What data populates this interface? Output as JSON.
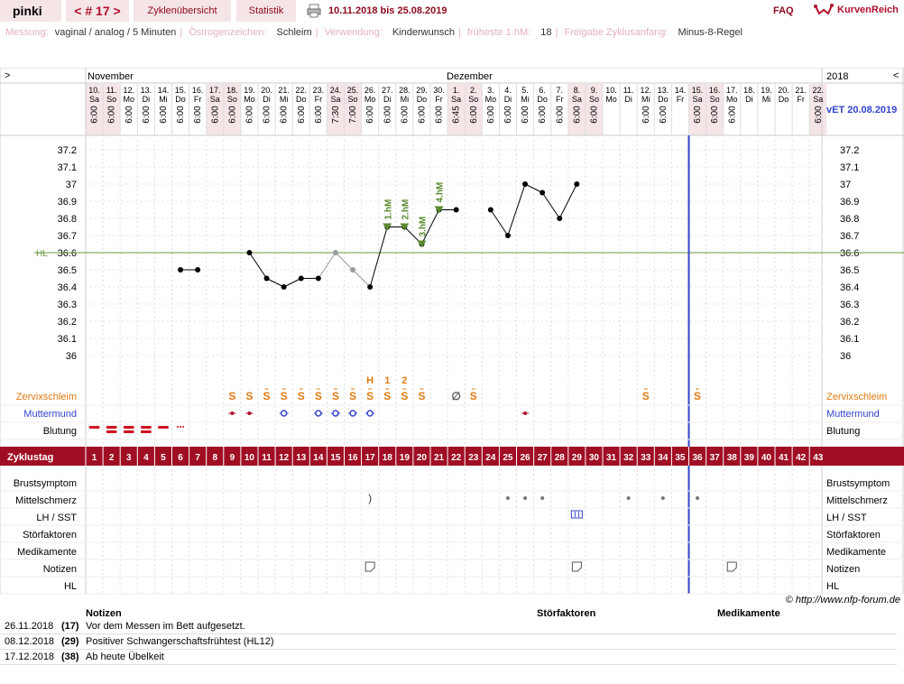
{
  "header": {
    "user": "pinki",
    "cycle_nav": "< # 17 >",
    "tab_overview": "Zyklenübersicht",
    "tab_stats": "Statistik",
    "date_range": "10.11.2018 bis 25.08.2019",
    "faq": "FAQ",
    "brand": "KurvenReich"
  },
  "info": {
    "messung_label": "Messung:",
    "messung": "vaginal / analog / 5 Minuten",
    "oestrogen_label": "Östrogenzeichen:",
    "oestrogen": "Schleim",
    "verwendung_label": "Verwendung:",
    "verwendung": "Kinderwunsch",
    "hm_label": "früheste 1.hM:",
    "hm": "18",
    "freigabe_label": "Freigabe Zyklusanfang:",
    "freigabe": "Minus-8-Regel"
  },
  "chart": {
    "nav_left": ">",
    "nav_right": "<",
    "year": "2018",
    "month1": "November",
    "month2": "Dezember",
    "vet": "vET 20.08.2019",
    "hl_label": "HL",
    "days": [
      "10.",
      "11.",
      "12.",
      "13.",
      "14.",
      "15.",
      "16.",
      "17.",
      "18.",
      "19.",
      "20.",
      "21.",
      "22.",
      "23.",
      "24.",
      "25.",
      "26.",
      "27.",
      "28.",
      "29.",
      "30.",
      "1.",
      "2.",
      "3.",
      "4.",
      "5.",
      "6.",
      "7.",
      "8.",
      "9.",
      "10.",
      "11.",
      "12.",
      "13.",
      "14.",
      "15.",
      "16.",
      "17.",
      "18.",
      "19.",
      "20.",
      "21.",
      "22."
    ],
    "weekdays": [
      "Sa",
      "So",
      "Mo",
      "Di",
      "Mi",
      "Do",
      "Fr",
      "Sa",
      "So",
      "Mo",
      "Di",
      "Mi",
      "Do",
      "Fr",
      "Sa",
      "So",
      "Mo",
      "Di",
      "Mi",
      "Do",
      "Fr",
      "Sa",
      "So",
      "Mo",
      "Di",
      "Mi",
      "Do",
      "Fr",
      "Sa",
      "So",
      "Mo",
      "Di",
      "Mi",
      "Do",
      "Fr",
      "Sa",
      "So",
      "Mo",
      "Di",
      "Mi",
      "Do",
      "Fr",
      "Sa"
    ],
    "times": [
      "6:00",
      "6:00",
      "6:00",
      "6:00",
      "6:00",
      "6:00",
      "6:00",
      "6:00",
      "6:00",
      "6:00",
      "6:00",
      "6:00",
      "6:00",
      "6:00",
      "7:30",
      "7:00",
      "6:00",
      "6:00",
      "6:00",
      "6:00",
      "6:00",
      "6:45",
      "6:00",
      "6:00",
      "6:00",
      "6:00",
      "6:00",
      "6:00",
      "6:00",
      "6:00",
      "",
      "",
      "6:00",
      "6:00",
      "",
      "6:00",
      "6:00",
      "6:00",
      "",
      "",
      "",
      "",
      "6:00"
    ],
    "y_ticks": [
      "37.2",
      "37.1",
      "37",
      "36.9",
      "36.8",
      "36.7",
      "36.6",
      "36.5",
      "36.4",
      "36.3",
      "36.2",
      "36.1",
      "36"
    ],
    "hm_labels": [
      "1.hM",
      "2.hM",
      "3.hM",
      "4.hM"
    ],
    "mark_h": "H",
    "mark_1": "1",
    "mark_2": "2",
    "zyklustag_label": "Zyklustag",
    "rows_left": [
      "Zervixschleim",
      "Muttermund",
      "Blutung"
    ],
    "rows_bottom": [
      "Brustsymptom",
      "Mittelschmerz",
      "LH / SST",
      "Störfaktoren",
      "Medikamente",
      "Notizen",
      "HL"
    ]
  },
  "chart_data": {
    "type": "line",
    "title": "",
    "xlabel": "Zyklustag",
    "ylabel": "",
    "ylim": [
      35.9,
      37.3
    ],
    "coverline": 36.6,
    "grid": true,
    "series": [
      {
        "values": [
          null,
          null,
          null,
          null,
          null,
          36.5,
          36.5,
          null,
          null,
          36.6,
          36.45,
          36.4,
          36.45,
          36.45,
          36.6,
          36.5,
          36.4,
          36.75,
          36.75,
          36.65,
          36.85,
          36.85,
          null,
          36.85,
          36.7,
          37.0,
          36.95,
          36.8,
          37.0,
          null,
          null,
          null,
          null,
          null,
          null,
          null,
          null,
          null,
          null,
          null,
          null,
          null,
          null
        ]
      }
    ],
    "excluded_days": [
      15,
      16
    ]
  },
  "notes": {
    "copyright": "© http://www.nfp-forum.de",
    "col_notes": "Notizen",
    "col_stoer": "Störfaktoren",
    "col_med": "Medikamente",
    "rows": [
      {
        "date": "26.11.2018",
        "day": "(17)",
        "text": "Vor dem Messen im Bett aufgesetzt."
      },
      {
        "date": "08.12.2018",
        "day": "(29)",
        "text": "Positiver Schwangerschaftsfrühtest (HL12)"
      },
      {
        "date": "17.12.2018",
        "day": "(38)",
        "text": "Ab heute Übelkeit"
      }
    ]
  },
  "colors": {
    "accent": "#8b0a1c",
    "coverline": "#6a9a3a",
    "marker": "#5a8a2e",
    "today": "#3344cc",
    "mucus": "#e07a10"
  }
}
